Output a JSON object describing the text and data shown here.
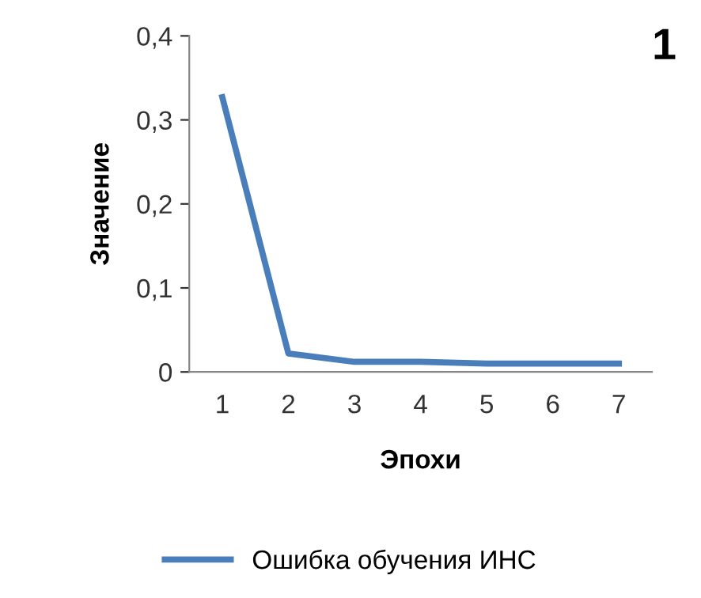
{
  "chart_data": {
    "type": "line",
    "xlabel": "Эпохи",
    "ylabel": "Значение",
    "annotations": [
      "1"
    ],
    "categories": [
      "1",
      "2",
      "3",
      "4",
      "5",
      "6",
      "7"
    ],
    "series": [
      {
        "name": "Ошибка обучения ИНС",
        "color": "#4a7ebb",
        "values": [
          0.327,
          0.022,
          0.012,
          0.012,
          0.01,
          0.01,
          0.01
        ]
      }
    ],
    "ylim": [
      0,
      0.4
    ],
    "yticks": [
      {
        "value": 0,
        "label": "0"
      },
      {
        "value": 0.1,
        "label": "0,1"
      },
      {
        "value": 0.2,
        "label": "0,2"
      },
      {
        "value": 0.3,
        "label": "0,3"
      },
      {
        "value": 0.4,
        "label": "0,4"
      }
    ],
    "grid": false,
    "legend": "bottom",
    "marker": "none",
    "line_style": "solid"
  }
}
